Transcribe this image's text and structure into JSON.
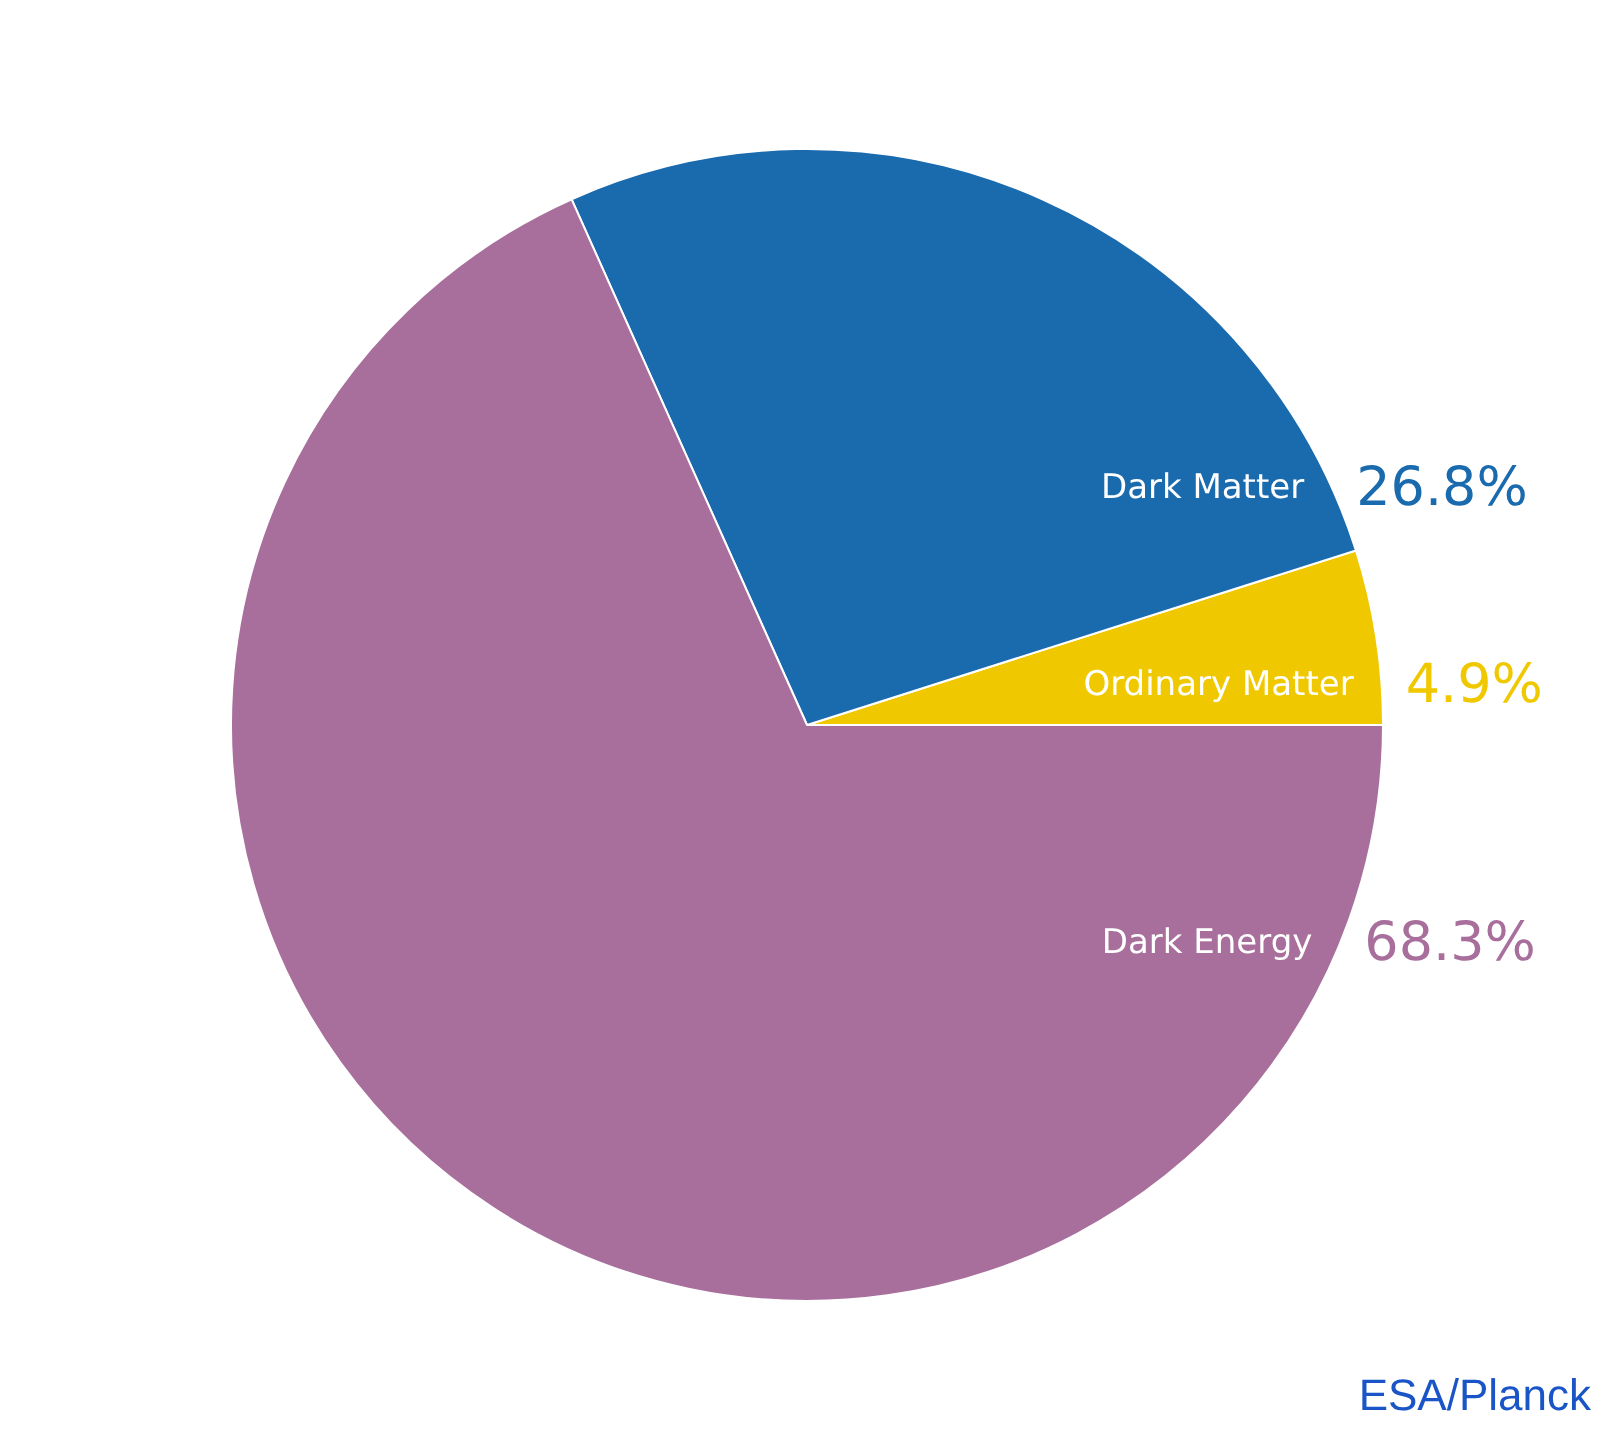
{
  "chart_data": {
    "type": "pie",
    "categories": [
      "Ordinary Matter",
      "Dark Matter",
      "Dark Energy"
    ],
    "values": [
      4.9,
      26.8,
      68.3
    ],
    "colors": [
      "#f0c800",
      "#1a6aae",
      "#a86f9c"
    ],
    "value_labels": [
      "4.9%",
      "26.8%",
      "68.3%"
    ],
    "annotations": [
      "ESA/Planck"
    ]
  }
}
